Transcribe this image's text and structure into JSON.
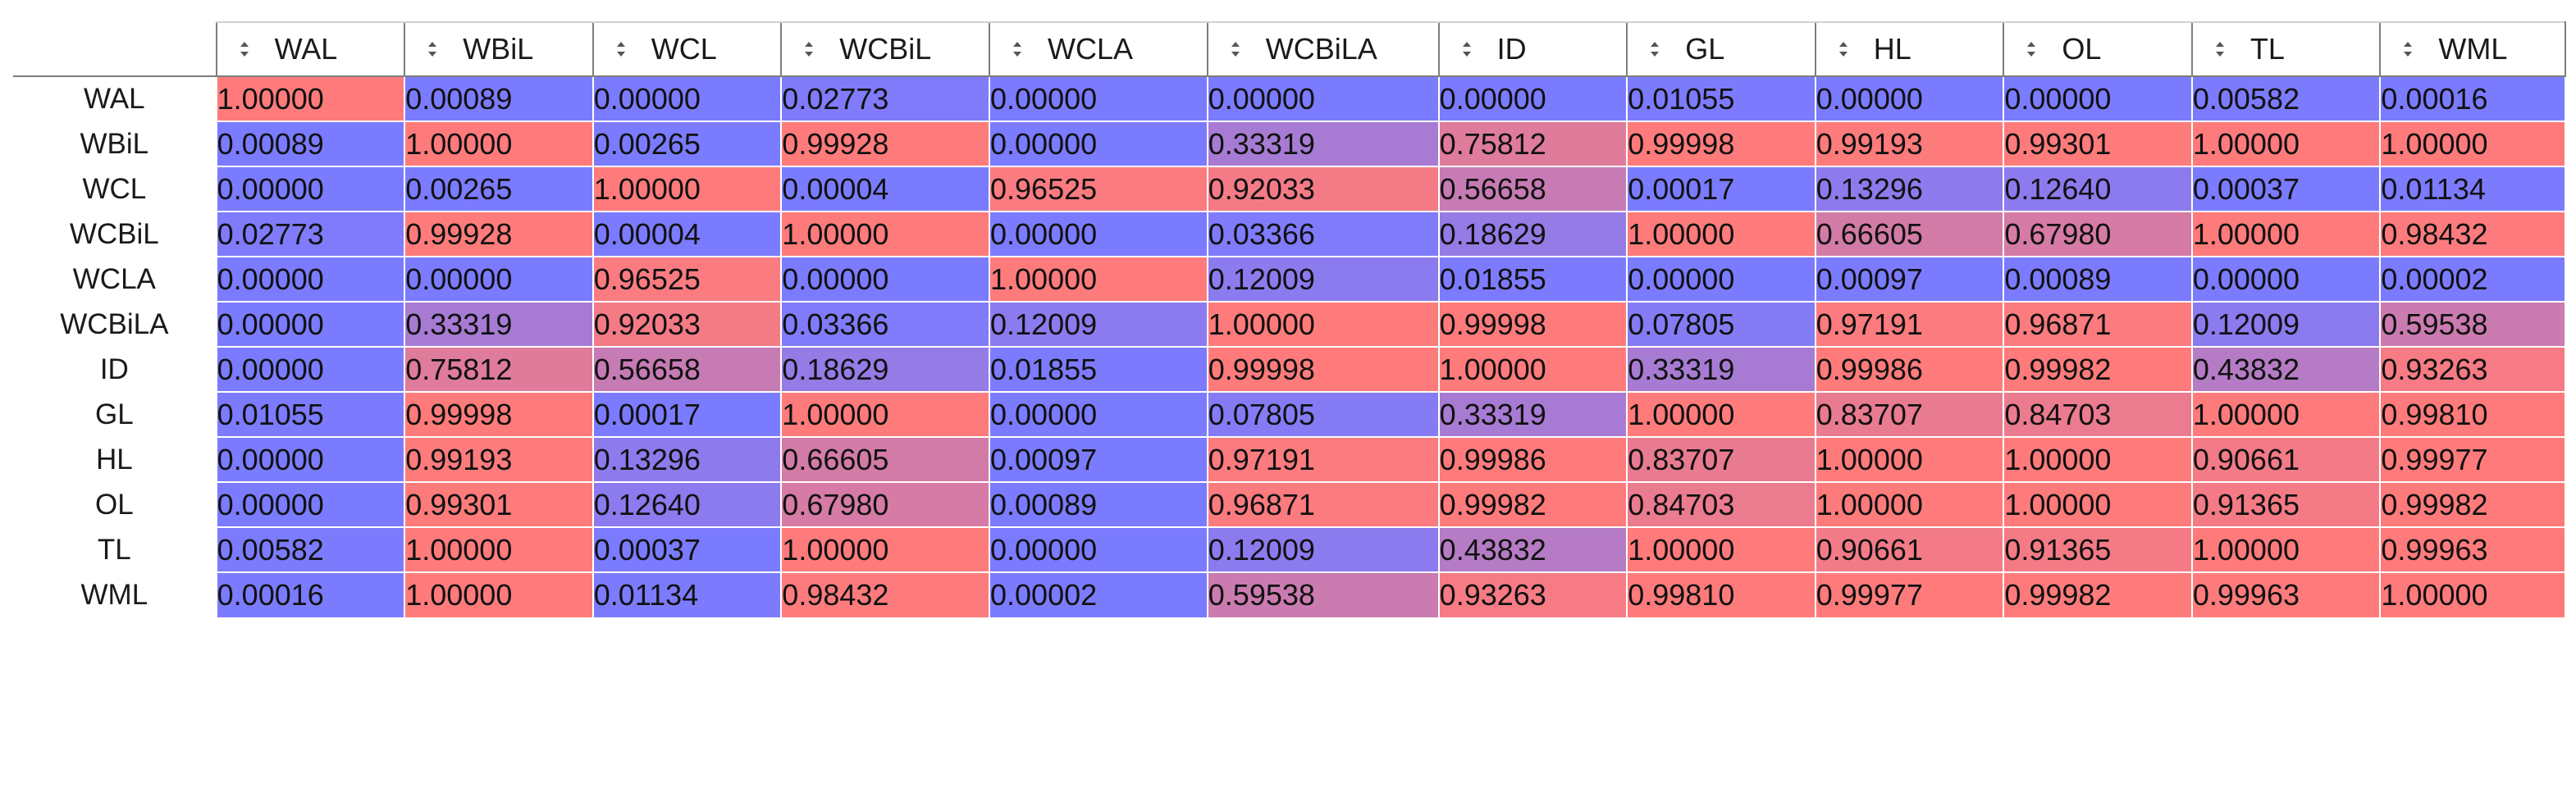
{
  "columns": [
    "WAL",
    "WBiL",
    "WCL",
    "WCBiL",
    "WCLA",
    "WCBiLA",
    "ID",
    "GL",
    "HL",
    "OL",
    "TL",
    "WML"
  ],
  "colors": {
    "low": "#7b7bff",
    "high": "#ff7b7b",
    "header_border": "#7d7d7d"
  },
  "icons": {
    "sort": "sort-updown-icon"
  },
  "rows": [
    {
      "label": "WAL",
      "cells": [
        "1.00000",
        "0.00089",
        "0.00000",
        "0.02773",
        "0.00000",
        "0.00000",
        "0.00000",
        "0.01055",
        "0.00000",
        "0.00000",
        "0.00582",
        "0.00016"
      ]
    },
    {
      "label": "WBiL",
      "cells": [
        "0.00089",
        "1.00000",
        "0.00265",
        "0.99928",
        "0.00000",
        "0.33319",
        "0.75812",
        "0.99998",
        "0.99193",
        "0.99301",
        "1.00000",
        "1.00000"
      ]
    },
    {
      "label": "WCL",
      "cells": [
        "0.00000",
        "0.00265",
        "1.00000",
        "0.00004",
        "0.96525",
        "0.92033",
        "0.56658",
        "0.00017",
        "0.13296",
        "0.12640",
        "0.00037",
        "0.01134"
      ]
    },
    {
      "label": "WCBiL",
      "cells": [
        "0.02773",
        "0.99928",
        "0.00004",
        "1.00000",
        "0.00000",
        "0.03366",
        "0.18629",
        "1.00000",
        "0.66605",
        "0.67980",
        "1.00000",
        "0.98432"
      ]
    },
    {
      "label": "WCLA",
      "cells": [
        "0.00000",
        "0.00000",
        "0.96525",
        "0.00000",
        "1.00000",
        "0.12009",
        "0.01855",
        "0.00000",
        "0.00097",
        "0.00089",
        "0.00000",
        "0.00002"
      ]
    },
    {
      "label": "WCBiLA",
      "cells": [
        "0.00000",
        "0.33319",
        "0.92033",
        "0.03366",
        "0.12009",
        "1.00000",
        "0.99998",
        "0.07805",
        "0.97191",
        "0.96871",
        "0.12009",
        "0.59538"
      ]
    },
    {
      "label": "ID",
      "cells": [
        "0.00000",
        "0.75812",
        "0.56658",
        "0.18629",
        "0.01855",
        "0.99998",
        "1.00000",
        "0.33319",
        "0.99986",
        "0.99982",
        "0.43832",
        "0.93263"
      ]
    },
    {
      "label": "GL",
      "cells": [
        "0.01055",
        "0.99998",
        "0.00017",
        "1.00000",
        "0.00000",
        "0.07805",
        "0.33319",
        "1.00000",
        "0.83707",
        "0.84703",
        "1.00000",
        "0.99810"
      ]
    },
    {
      "label": "HL",
      "cells": [
        "0.00000",
        "0.99193",
        "0.13296",
        "0.66605",
        "0.00097",
        "0.97191",
        "0.99986",
        "0.83707",
        "1.00000",
        "1.00000",
        "0.90661",
        "0.99977"
      ]
    },
    {
      "label": "OL",
      "cells": [
        "0.00000",
        "0.99301",
        "0.12640",
        "0.67980",
        "0.00089",
        "0.96871",
        "0.99982",
        "0.84703",
        "1.00000",
        "1.00000",
        "0.91365",
        "0.99982"
      ]
    },
    {
      "label": "TL",
      "cells": [
        "0.00582",
        "1.00000",
        "0.00037",
        "1.00000",
        "0.00000",
        "0.12009",
        "0.43832",
        "1.00000",
        "0.90661",
        "0.91365",
        "1.00000",
        "0.99963"
      ]
    },
    {
      "label": "WML",
      "cells": [
        "0.00016",
        "1.00000",
        "0.01134",
        "0.98432",
        "0.00002",
        "0.59538",
        "0.93263",
        "0.99810",
        "0.99977",
        "0.99982",
        "0.99963",
        "1.00000"
      ]
    }
  ]
}
